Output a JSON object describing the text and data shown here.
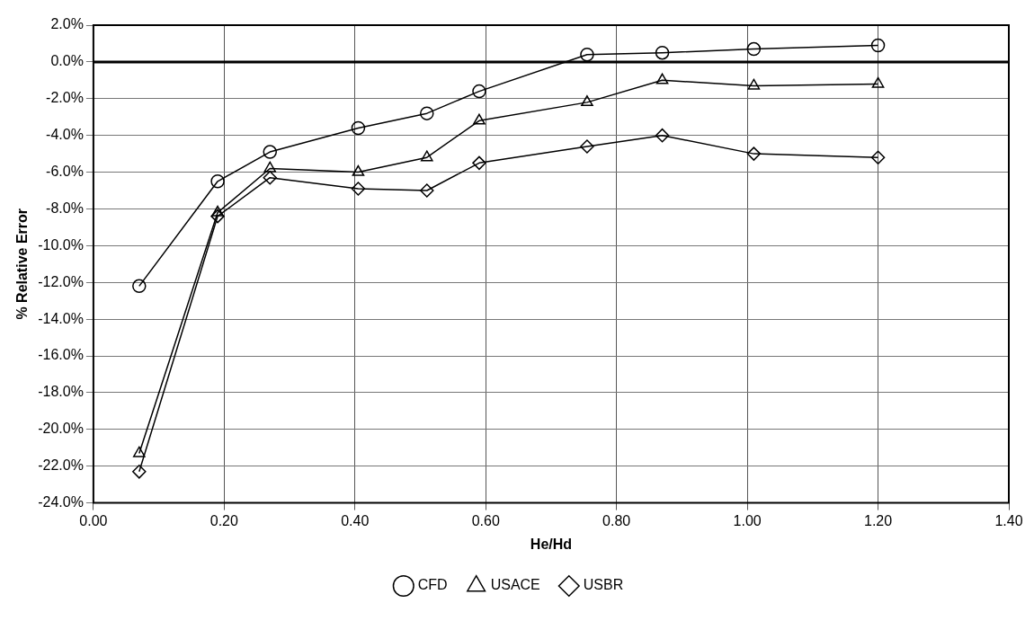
{
  "chart_data": {
    "type": "line",
    "xlabel": "He/Hd",
    "ylabel": "% Relative Error",
    "x": [
      0.07,
      0.19,
      0.27,
      0.405,
      0.51,
      0.59,
      0.755,
      0.87,
      1.01,
      1.2
    ],
    "series": [
      {
        "name": "CFD",
        "color": "#000000",
        "marker": "circle",
        "values": [
          -12.2,
          -6.5,
          -4.9,
          -3.6,
          -2.8,
          -1.6,
          0.4,
          0.5,
          0.7,
          0.9
        ]
      },
      {
        "name": "USACE",
        "color": "#000000",
        "marker": "triangle",
        "values": [
          -21.3,
          -8.2,
          -5.8,
          -6.0,
          -5.2,
          -3.2,
          -2.2,
          -1.0,
          -1.3,
          -1.2
        ]
      },
      {
        "name": "USBR",
        "color": "#000000",
        "marker": "diamond",
        "values": [
          -22.3,
          -8.4,
          -6.3,
          -6.9,
          -7.0,
          -5.5,
          -4.6,
          -4.0,
          -5.0,
          -5.2
        ]
      }
    ],
    "xlim": [
      0,
      1.4
    ],
    "xticks": [
      {
        "value": 0,
        "label": "0.00"
      },
      {
        "value": 0.2,
        "label": "0.20"
      },
      {
        "value": 0.4,
        "label": "0.40"
      },
      {
        "value": 0.6,
        "label": "0.60"
      },
      {
        "value": 0.8,
        "label": "0.80"
      },
      {
        "value": 1.0,
        "label": "1.00"
      },
      {
        "value": 1.2,
        "label": "1.20"
      },
      {
        "value": 1.4,
        "label": "1.40"
      }
    ],
    "ylim": [
      -24,
      2
    ],
    "yticks": [
      {
        "value": -24,
        "label": "-24.0%"
      },
      {
        "value": -22,
        "label": "-22.0%"
      },
      {
        "value": -20,
        "label": "-20.0%"
      },
      {
        "value": -18,
        "label": "-18.0%"
      },
      {
        "value": -16,
        "label": "-16.0%"
      },
      {
        "value": -14,
        "label": "-14.0%"
      },
      {
        "value": -12,
        "label": "-12.0%"
      },
      {
        "value": -10,
        "label": "-10.0%"
      },
      {
        "value": -8,
        "label": "-8.0%"
      },
      {
        "value": -6,
        "label": "-6.0%"
      },
      {
        "value": -4,
        "label": "-4.0%"
      },
      {
        "value": -2,
        "label": "-2.0%"
      },
      {
        "value": 0,
        "label": "0.0%"
      },
      {
        "value": 2,
        "label": "2.0%"
      }
    ],
    "ref_lines": [
      {
        "axis": "y",
        "value": 0,
        "color": "#000000"
      }
    ],
    "grid": true,
    "legend": "bottom",
    "line_style": "solid"
  }
}
